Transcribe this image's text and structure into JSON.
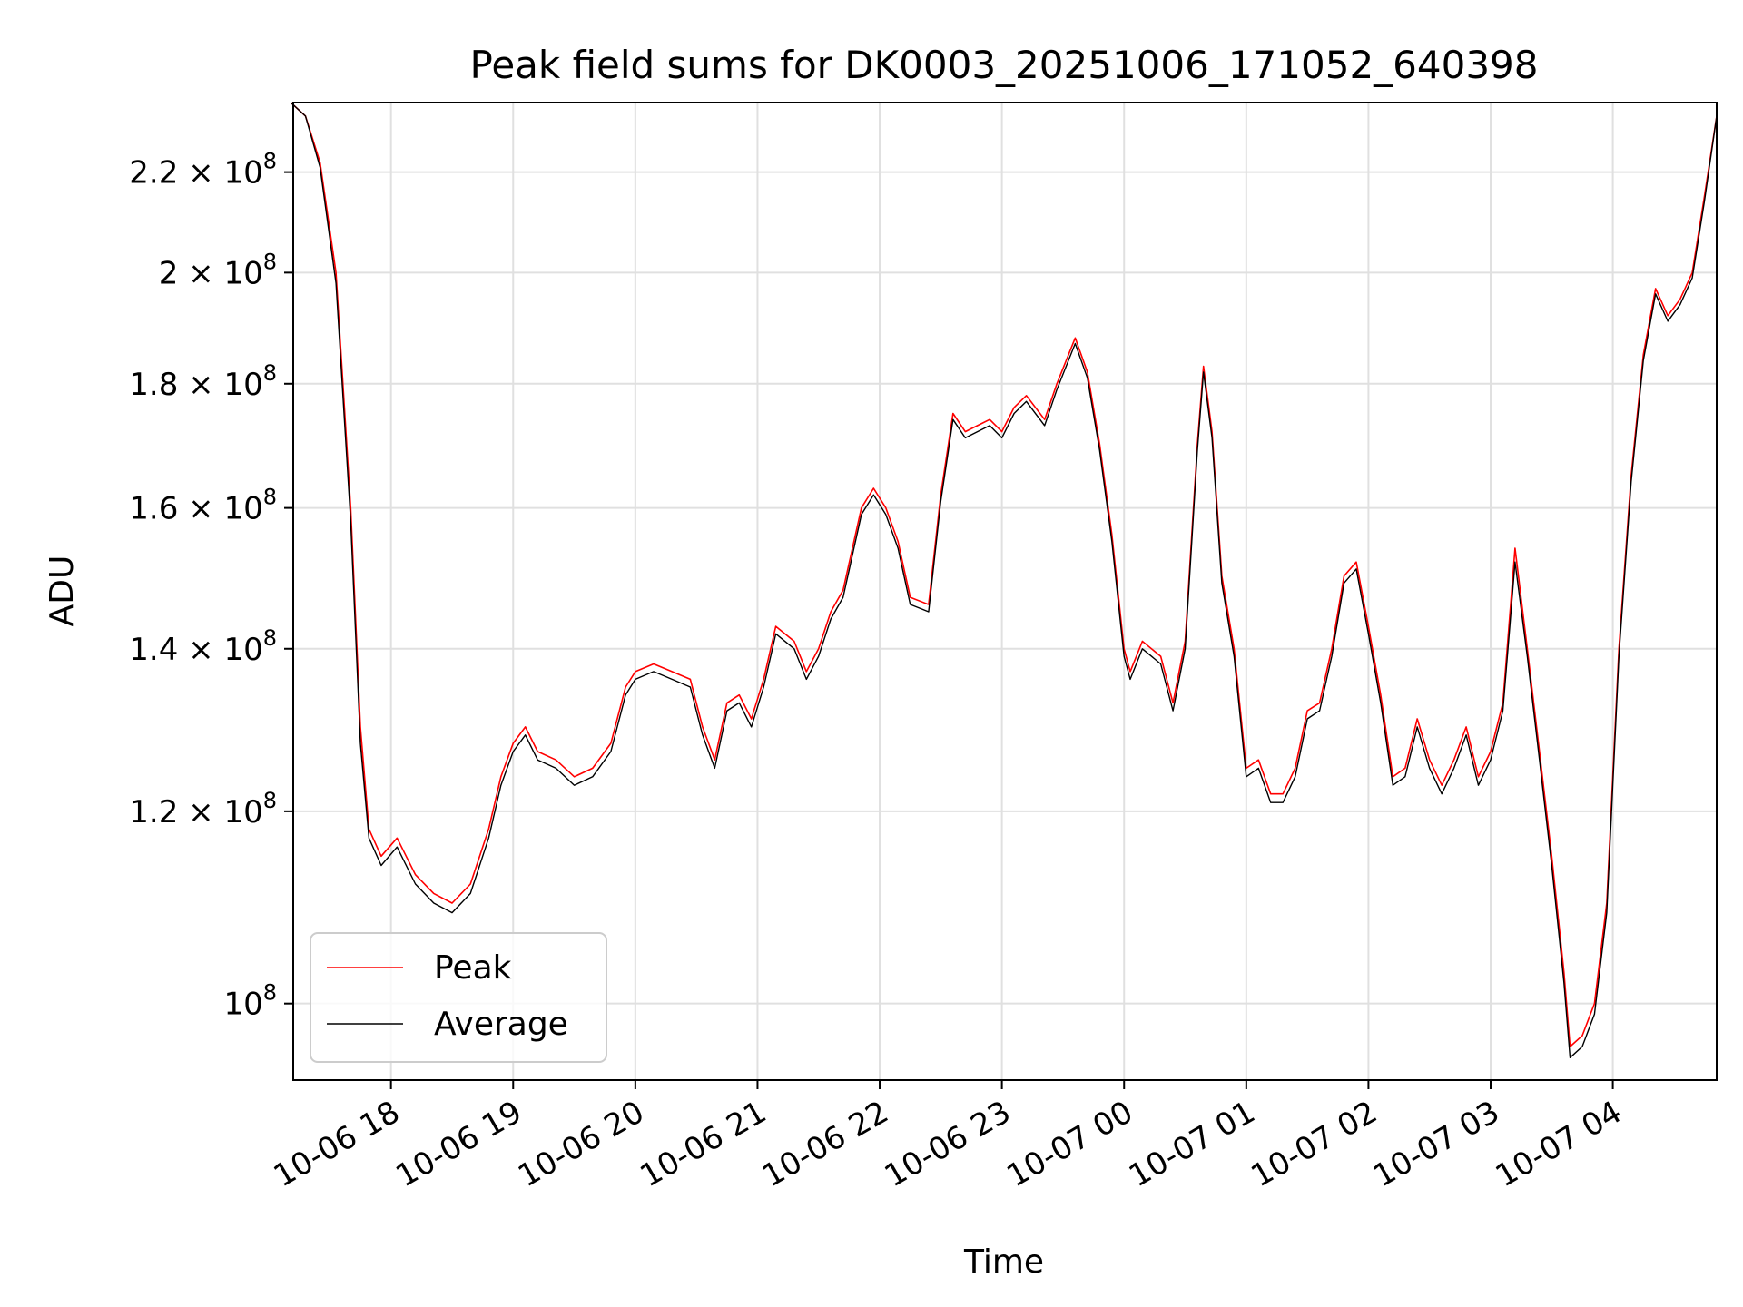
{
  "chart_data": {
    "type": "line",
    "title": "Peak field sums for DK0003_20251006_171052_640398",
    "xlabel": "Time",
    "ylabel": "ADU",
    "yscale": "log",
    "ylim": [
      93000000,
      235000000
    ],
    "xlim_hours": [
      17.2,
      4.85
    ],
    "grid": true,
    "legend_position": "lower-left",
    "x_ticks": [
      {
        "hour": 18,
        "label": "10-06 18"
      },
      {
        "hour": 19,
        "label": "10-06 19"
      },
      {
        "hour": 20,
        "label": "10-06 20"
      },
      {
        "hour": 21,
        "label": "10-06 21"
      },
      {
        "hour": 22,
        "label": "10-06 22"
      },
      {
        "hour": 23,
        "label": "10-06 23"
      },
      {
        "hour": 24,
        "label": "10-07 00"
      },
      {
        "hour": 25,
        "label": "10-07 01"
      },
      {
        "hour": 26,
        "label": "10-07 02"
      },
      {
        "hour": 27,
        "label": "10-07 03"
      },
      {
        "hour": 28,
        "label": "10-07 04"
      }
    ],
    "y_ticks": [
      {
        "value": 100000000,
        "mantissa": "",
        "exp": "8"
      },
      {
        "value": 120000000,
        "mantissa": "1.2",
        "exp": "8"
      },
      {
        "value": 140000000,
        "mantissa": "1.4",
        "exp": "8"
      },
      {
        "value": 160000000,
        "mantissa": "1.6",
        "exp": "8"
      },
      {
        "value": 180000000,
        "mantissa": "1.8",
        "exp": "8"
      },
      {
        "value": 200000000,
        "mantissa": "2",
        "exp": "8"
      },
      {
        "value": 220000000,
        "mantissa": "2.2",
        "exp": "8"
      }
    ],
    "series": [
      {
        "name": "Peak",
        "color": "#ff0000",
        "points": [
          [
            17.18,
            235
          ],
          [
            17.3,
            232
          ],
          [
            17.42,
            222
          ],
          [
            17.55,
            200
          ],
          [
            17.67,
            160
          ],
          [
            17.75,
            130
          ],
          [
            17.82,
            118
          ],
          [
            17.92,
            115
          ],
          [
            18.05,
            117
          ],
          [
            18.2,
            113
          ],
          [
            18.35,
            111
          ],
          [
            18.5,
            110
          ],
          [
            18.65,
            112
          ],
          [
            18.8,
            118
          ],
          [
            18.9,
            124
          ],
          [
            19.0,
            128
          ],
          [
            19.1,
            130
          ],
          [
            19.2,
            127
          ],
          [
            19.35,
            126
          ],
          [
            19.5,
            124
          ],
          [
            19.65,
            125
          ],
          [
            19.8,
            128
          ],
          [
            19.92,
            135
          ],
          [
            20.0,
            137
          ],
          [
            20.15,
            138
          ],
          [
            20.3,
            137
          ],
          [
            20.45,
            136
          ],
          [
            20.55,
            130
          ],
          [
            20.65,
            126
          ],
          [
            20.75,
            133
          ],
          [
            20.85,
            134
          ],
          [
            20.95,
            131
          ],
          [
            21.05,
            136
          ],
          [
            21.15,
            143
          ],
          [
            21.3,
            141
          ],
          [
            21.4,
            137
          ],
          [
            21.5,
            140
          ],
          [
            21.6,
            145
          ],
          [
            21.7,
            148
          ],
          [
            21.85,
            160
          ],
          [
            21.95,
            163
          ],
          [
            22.05,
            160
          ],
          [
            22.15,
            155
          ],
          [
            22.25,
            147
          ],
          [
            22.4,
            146
          ],
          [
            22.5,
            162
          ],
          [
            22.6,
            175
          ],
          [
            22.7,
            172
          ],
          [
            22.8,
            173
          ],
          [
            22.9,
            174
          ],
          [
            23.0,
            172
          ],
          [
            23.1,
            176
          ],
          [
            23.2,
            178
          ],
          [
            23.35,
            174
          ],
          [
            23.45,
            180
          ],
          [
            23.6,
            188
          ],
          [
            23.7,
            182
          ],
          [
            23.8,
            170
          ],
          [
            23.9,
            156
          ],
          [
            24.0,
            140
          ],
          [
            24.05,
            137
          ],
          [
            24.15,
            141
          ],
          [
            24.3,
            139
          ],
          [
            24.4,
            133
          ],
          [
            24.5,
            141
          ],
          [
            24.6,
            170
          ],
          [
            24.65,
            183
          ],
          [
            24.72,
            172
          ],
          [
            24.8,
            150
          ],
          [
            24.9,
            140
          ],
          [
            25.0,
            125
          ],
          [
            25.1,
            126
          ],
          [
            25.2,
            122
          ],
          [
            25.3,
            122
          ],
          [
            25.4,
            125
          ],
          [
            25.5,
            132
          ],
          [
            25.6,
            133
          ],
          [
            25.7,
            140
          ],
          [
            25.8,
            150
          ],
          [
            25.9,
            152
          ],
          [
            26.0,
            143
          ],
          [
            26.1,
            134
          ],
          [
            26.2,
            124
          ],
          [
            26.3,
            125
          ],
          [
            26.4,
            131
          ],
          [
            26.5,
            126
          ],
          [
            26.6,
            123
          ],
          [
            26.7,
            126
          ],
          [
            26.8,
            130
          ],
          [
            26.9,
            124
          ],
          [
            27.0,
            127
          ],
          [
            27.1,
            133
          ],
          [
            27.2,
            154
          ],
          [
            27.3,
            140
          ],
          [
            27.4,
            127
          ],
          [
            27.5,
            115
          ],
          [
            27.6,
            103
          ],
          [
            27.65,
            96
          ],
          [
            27.75,
            97
          ],
          [
            27.85,
            100
          ],
          [
            27.95,
            110
          ],
          [
            28.05,
            140
          ],
          [
            28.15,
            165
          ],
          [
            28.25,
            185
          ],
          [
            28.35,
            197
          ],
          [
            28.45,
            192
          ],
          [
            28.55,
            195
          ],
          [
            28.65,
            200
          ],
          [
            28.75,
            215
          ],
          [
            28.85,
            232
          ]
        ]
      },
      {
        "name": "Average",
        "color": "#000000",
        "points": [
          [
            17.18,
            235
          ],
          [
            17.3,
            232
          ],
          [
            17.42,
            221
          ],
          [
            17.55,
            198
          ],
          [
            17.67,
            158
          ],
          [
            17.75,
            128
          ],
          [
            17.82,
            117
          ],
          [
            17.92,
            114
          ],
          [
            18.05,
            116
          ],
          [
            18.2,
            112
          ],
          [
            18.35,
            110
          ],
          [
            18.5,
            109
          ],
          [
            18.65,
            111
          ],
          [
            18.8,
            117
          ],
          [
            18.9,
            123
          ],
          [
            19.0,
            127
          ],
          [
            19.1,
            129
          ],
          [
            19.2,
            126
          ],
          [
            19.35,
            125
          ],
          [
            19.5,
            123
          ],
          [
            19.65,
            124
          ],
          [
            19.8,
            127
          ],
          [
            19.92,
            134
          ],
          [
            20.0,
            136
          ],
          [
            20.15,
            137
          ],
          [
            20.3,
            136
          ],
          [
            20.45,
            135
          ],
          [
            20.55,
            129
          ],
          [
            20.65,
            125
          ],
          [
            20.75,
            132
          ],
          [
            20.85,
            133
          ],
          [
            20.95,
            130
          ],
          [
            21.05,
            135
          ],
          [
            21.15,
            142
          ],
          [
            21.3,
            140
          ],
          [
            21.4,
            136
          ],
          [
            21.5,
            139
          ],
          [
            21.6,
            144
          ],
          [
            21.7,
            147
          ],
          [
            21.85,
            159
          ],
          [
            21.95,
            162
          ],
          [
            22.05,
            159
          ],
          [
            22.15,
            154
          ],
          [
            22.25,
            146
          ],
          [
            22.4,
            145
          ],
          [
            22.5,
            161
          ],
          [
            22.6,
            174
          ],
          [
            22.7,
            171
          ],
          [
            22.8,
            172
          ],
          [
            22.9,
            173
          ],
          [
            23.0,
            171
          ],
          [
            23.1,
            175
          ],
          [
            23.2,
            177
          ],
          [
            23.35,
            173
          ],
          [
            23.45,
            179
          ],
          [
            23.6,
            187
          ],
          [
            23.7,
            181
          ],
          [
            23.8,
            169
          ],
          [
            23.9,
            155
          ],
          [
            24.0,
            139
          ],
          [
            24.05,
            136
          ],
          [
            24.15,
            140
          ],
          [
            24.3,
            138
          ],
          [
            24.4,
            132
          ],
          [
            24.5,
            140
          ],
          [
            24.6,
            169
          ],
          [
            24.65,
            182
          ],
          [
            24.72,
            171
          ],
          [
            24.8,
            149
          ],
          [
            24.9,
            139
          ],
          [
            25.0,
            124
          ],
          [
            25.1,
            125
          ],
          [
            25.2,
            121
          ],
          [
            25.3,
            121
          ],
          [
            25.4,
            124
          ],
          [
            25.5,
            131
          ],
          [
            25.6,
            132
          ],
          [
            25.7,
            139
          ],
          [
            25.8,
            149
          ],
          [
            25.9,
            151
          ],
          [
            26.0,
            142
          ],
          [
            26.1,
            133
          ],
          [
            26.2,
            123
          ],
          [
            26.3,
            124
          ],
          [
            26.4,
            130
          ],
          [
            26.5,
            125
          ],
          [
            26.6,
            122
          ],
          [
            26.7,
            125
          ],
          [
            26.8,
            129
          ],
          [
            26.9,
            123
          ],
          [
            27.0,
            126
          ],
          [
            27.1,
            132
          ],
          [
            27.2,
            152
          ],
          [
            27.3,
            139
          ],
          [
            27.4,
            126
          ],
          [
            27.5,
            114
          ],
          [
            27.6,
            102
          ],
          [
            27.65,
            95
          ],
          [
            27.75,
            96
          ],
          [
            27.85,
            99
          ],
          [
            27.95,
            109
          ],
          [
            28.05,
            139
          ],
          [
            28.15,
            164
          ],
          [
            28.25,
            184
          ],
          [
            28.35,
            196
          ],
          [
            28.45,
            191
          ],
          [
            28.55,
            194
          ],
          [
            28.65,
            199
          ],
          [
            28.75,
            214
          ],
          [
            28.85,
            232
          ]
        ]
      }
    ]
  }
}
